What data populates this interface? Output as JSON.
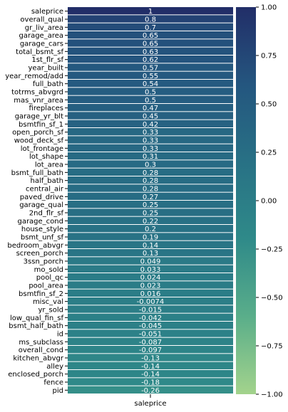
{
  "chart_data": {
    "type": "heatmap",
    "column": "saleprice",
    "rows": [
      "saleprice",
      "overall_qual",
      "gr_liv_area",
      "garage_area",
      "garage_cars",
      "total_bsmt_sf",
      "1st_flr_sf",
      "year_built",
      "year_remod/add",
      "full_bath",
      "totrms_abvgrd",
      "mas_vnr_area",
      "fireplaces",
      "garage_yr_blt",
      "bsmtfin_sf_1",
      "open_porch_sf",
      "wood_deck_sf",
      "lot_frontage",
      "lot_shape",
      "lot_area",
      "bsmt_full_bath",
      "half_bath",
      "central_air",
      "paved_drive",
      "garage_qual",
      "2nd_flr_sf",
      "garage_cond",
      "house_style",
      "bsmt_unf_sf",
      "bedroom_abvgr",
      "screen_porch",
      "3ssn_porch",
      "mo_sold",
      "pool_qc",
      "pool_area",
      "bsmtfin_sf_2",
      "misc_val",
      "yr_sold",
      "low_qual_fin_sf",
      "bsmt_half_bath",
      "id",
      "ms_subclass",
      "overall_cond",
      "kitchen_abvgr",
      "alley",
      "enclosed_porch",
      "fence",
      "pid"
    ],
    "values": [
      1,
      0.8,
      0.7,
      0.65,
      0.65,
      0.63,
      0.62,
      0.57,
      0.55,
      0.54,
      0.5,
      0.5,
      0.47,
      0.45,
      0.42,
      0.33,
      0.33,
      0.33,
      0.31,
      0.3,
      0.28,
      0.28,
      0.28,
      0.27,
      0.25,
      0.25,
      0.22,
      0.2,
      0.19,
      0.14,
      0.13,
      0.049,
      0.033,
      0.024,
      0.023,
      0.016,
      -0.0074,
      -0.015,
      -0.042,
      -0.045,
      -0.051,
      -0.087,
      -0.097,
      -0.13,
      -0.14,
      -0.14,
      -0.18,
      -0.26
    ],
    "value_labels": [
      "1",
      "0.8",
      "0.7",
      "0.65",
      "0.65",
      "0.63",
      "0.62",
      "0.57",
      "0.55",
      "0.54",
      "0.5",
      "0.5",
      "0.47",
      "0.45",
      "0.42",
      "0.33",
      "0.33",
      "0.33",
      "0.31",
      "0.3",
      "0.28",
      "0.28",
      "0.28",
      "0.27",
      "0.25",
      "0.25",
      "0.22",
      "0.2",
      "0.19",
      "0.14",
      "0.13",
      "0.049",
      "0.033",
      "0.024",
      "0.023",
      "0.016",
      "-0.0074",
      "-0.015",
      "-0.042",
      "-0.045",
      "-0.051",
      "-0.087",
      "-0.097",
      "-0.13",
      "-0.14",
      "-0.14",
      "-0.18",
      "-0.26"
    ],
    "vmin": -1,
    "vmax": 1,
    "colorbar_ticks": [
      1,
      0.75,
      0.5,
      0.25,
      0,
      -0.25,
      -0.5,
      -0.75,
      -1
    ],
    "colorbar_tick_labels": [
      "1.00",
      "0.75",
      "0.50",
      "0.25",
      "0.00",
      "−0.25",
      "−0.50",
      "−0.75",
      "−1.00"
    ],
    "colormap": [
      "#a3d38c",
      "#5aae8a",
      "#2f8a89",
      "#287185",
      "#24567f",
      "#222e68"
    ],
    "legend": "right",
    "grid": false
  }
}
